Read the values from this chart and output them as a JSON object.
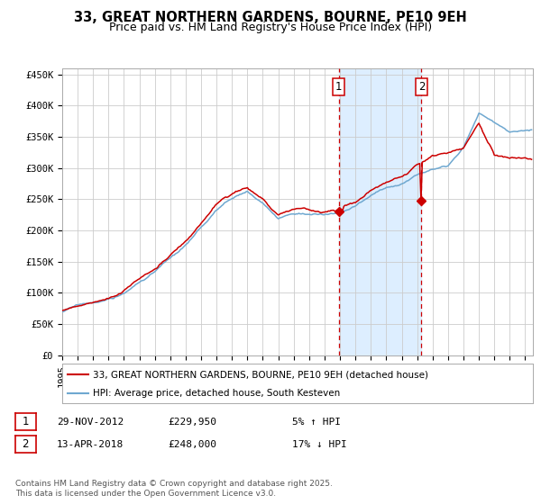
{
  "title": "33, GREAT NORTHERN GARDENS, BOURNE, PE10 9EH",
  "subtitle": "Price paid vs. HM Land Registry's House Price Index (HPI)",
  "ylabel_ticks": [
    "£0",
    "£50K",
    "£100K",
    "£150K",
    "£200K",
    "£250K",
    "£300K",
    "£350K",
    "£400K",
    "£450K"
  ],
  "ytick_vals": [
    0,
    50000,
    100000,
    150000,
    200000,
    250000,
    300000,
    350000,
    400000,
    450000
  ],
  "ylim": [
    0,
    460000
  ],
  "hpi_color": "#6fa8d0",
  "price_color": "#cc0000",
  "background_color": "#ffffff",
  "grid_color": "#cccccc",
  "sale1_year": 2012.91,
  "sale1_price": 229950,
  "sale2_year": 2018.28,
  "sale2_price": 248000,
  "shade_color": "#ddeeff",
  "legend_line1": "33, GREAT NORTHERN GARDENS, BOURNE, PE10 9EH (detached house)",
  "legend_line2": "HPI: Average price, detached house, South Kesteven",
  "date1": "29-NOV-2012",
  "price1_str": "£229,950",
  "pct1_str": "5% ↑ HPI",
  "date2": "13-APR-2018",
  "price2_str": "£248,000",
  "pct2_str": "17% ↓ HPI",
  "footer": "Contains HM Land Registry data © Crown copyright and database right 2025.\nThis data is licensed under the Open Government Licence v3.0.",
  "title_fontsize": 10.5,
  "subtitle_fontsize": 9,
  "tick_fontsize": 7.5,
  "legend_fontsize": 7.5,
  "annot_fontsize": 8
}
